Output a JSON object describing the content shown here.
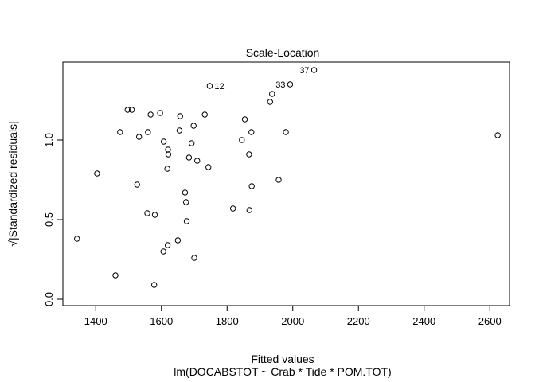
{
  "chart_data": {
    "type": "scatter",
    "title": "Scale-Location",
    "xlabel": "Fitted values",
    "subtitle": "lm(DOCABSTOT ~ Crab * Tide * POM.TOT)",
    "ylabel": "√|Standardized residuals|",
    "xlim": [
      1300,
      2660
    ],
    "ylim": [
      -0.04,
      1.49
    ],
    "xticks": [
      1400,
      1600,
      1800,
      2000,
      2200,
      2400,
      2600
    ],
    "yticks": [
      0.0,
      0.5,
      1.0
    ],
    "yticklabels": [
      "0.0",
      "0.5",
      "1.0"
    ],
    "grid": false,
    "points": [
      {
        "x": 1343,
        "y": 0.38
      },
      {
        "x": 1404,
        "y": 0.79
      },
      {
        "x": 1460,
        "y": 0.15
      },
      {
        "x": 1474,
        "y": 1.05
      },
      {
        "x": 1497,
        "y": 1.19
      },
      {
        "x": 1510,
        "y": 1.19
      },
      {
        "x": 1526,
        "y": 0.72
      },
      {
        "x": 1532,
        "y": 1.02
      },
      {
        "x": 1557,
        "y": 0.54
      },
      {
        "x": 1559,
        "y": 1.05
      },
      {
        "x": 1567,
        "y": 1.16
      },
      {
        "x": 1578,
        "y": 0.09
      },
      {
        "x": 1580,
        "y": 0.53
      },
      {
        "x": 1596,
        "y": 1.17
      },
      {
        "x": 1606,
        "y": 0.3
      },
      {
        "x": 1607,
        "y": 0.99
      },
      {
        "x": 1618,
        "y": 0.82
      },
      {
        "x": 1619,
        "y": 0.34
      },
      {
        "x": 1620,
        "y": 0.94
      },
      {
        "x": 1621,
        "y": 0.91
      },
      {
        "x": 1650,
        "y": 0.37
      },
      {
        "x": 1655,
        "y": 1.06
      },
      {
        "x": 1657,
        "y": 1.15
      },
      {
        "x": 1672,
        "y": 0.67
      },
      {
        "x": 1675,
        "y": 0.61
      },
      {
        "x": 1677,
        "y": 0.49
      },
      {
        "x": 1684,
        "y": 0.89
      },
      {
        "x": 1692,
        "y": 0.98
      },
      {
        "x": 1698,
        "y": 1.09
      },
      {
        "x": 1700,
        "y": 0.26
      },
      {
        "x": 1709,
        "y": 0.87
      },
      {
        "x": 1732,
        "y": 1.16
      },
      {
        "x": 1743,
        "y": 0.83
      },
      {
        "x": 1747,
        "y": 1.34,
        "label": "12"
      },
      {
        "x": 1818,
        "y": 0.57
      },
      {
        "x": 1845,
        "y": 1.0
      },
      {
        "x": 1854,
        "y": 1.13
      },
      {
        "x": 1867,
        "y": 0.91
      },
      {
        "x": 1868,
        "y": 0.56
      },
      {
        "x": 1874,
        "y": 1.05
      },
      {
        "x": 1875,
        "y": 0.71
      },
      {
        "x": 1931,
        "y": 1.24
      },
      {
        "x": 1937,
        "y": 1.29
      },
      {
        "x": 1957,
        "y": 0.75
      },
      {
        "x": 1979,
        "y": 1.05
      },
      {
        "x": 1992,
        "y": 1.35,
        "label": "33"
      },
      {
        "x": 2065,
        "y": 1.44,
        "label": "37"
      },
      {
        "x": 2624,
        "y": 1.03
      }
    ]
  }
}
